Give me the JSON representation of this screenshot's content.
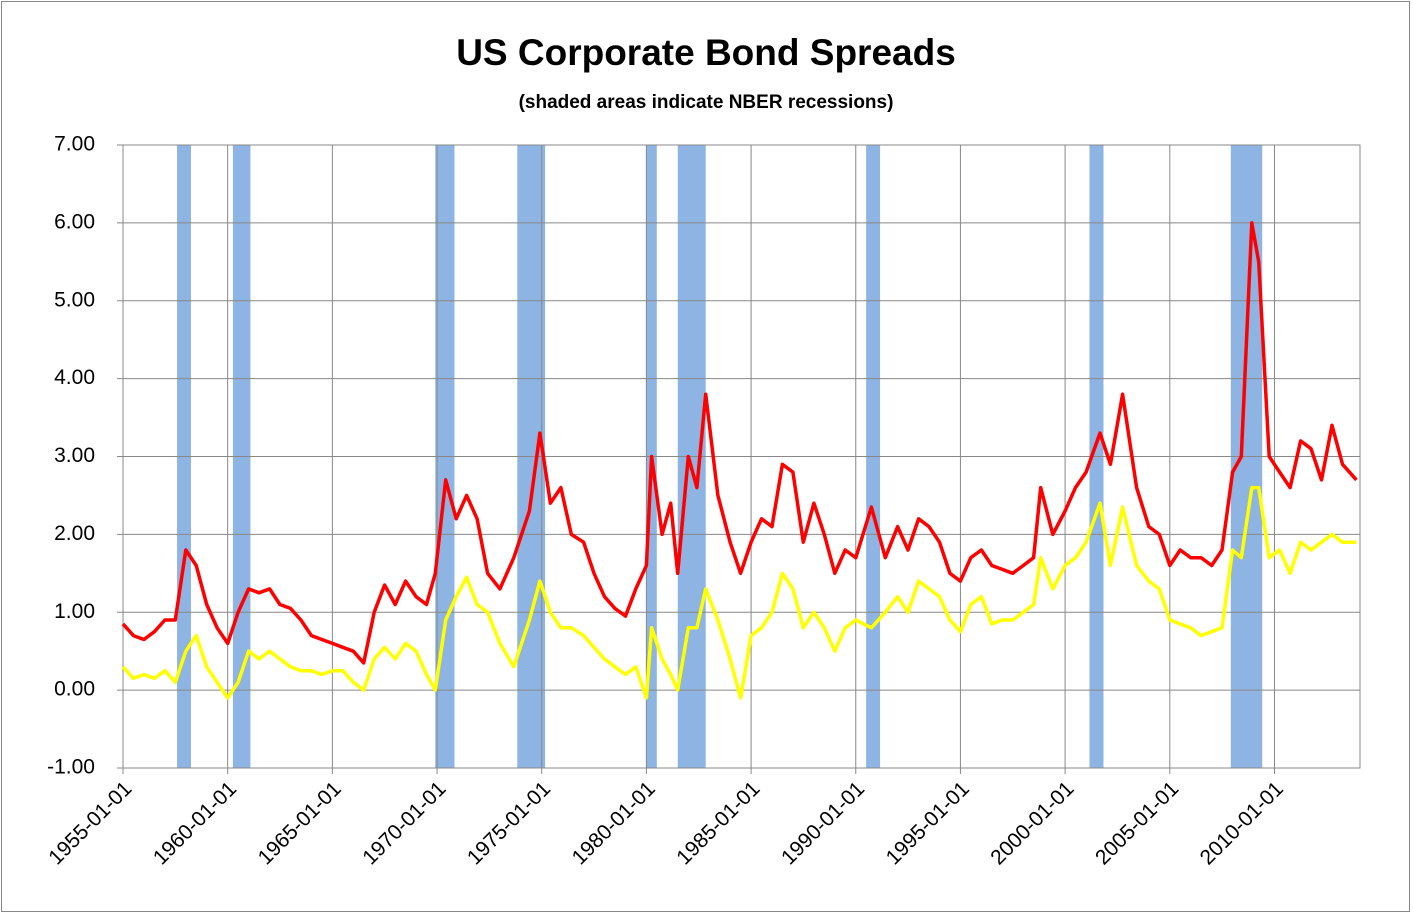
{
  "chart_data": {
    "type": "line",
    "title": "US Corporate Bond Spreads",
    "subtitle": "(shaded areas indicate NBER recessions)",
    "x": [
      "1955-01-01",
      "1955-07-01",
      "1956-01-01",
      "1956-07-01",
      "1957-01-01",
      "1957-07-01",
      "1958-01-01",
      "1958-07-01",
      "1959-01-01",
      "1959-07-01",
      "1960-01-01",
      "1960-07-01",
      "1961-01-01",
      "1961-07-01",
      "1962-01-01",
      "1962-07-01",
      "1963-01-01",
      "1963-07-01",
      "1964-01-01",
      "1964-07-01",
      "1965-01-01",
      "1965-07-01",
      "1966-01-01",
      "1966-07-01",
      "1967-01-01",
      "1967-07-01",
      "1968-01-01",
      "1968-07-01",
      "1969-01-01",
      "1969-07-01",
      "1969-12-01",
      "1970-06-01",
      "1970-12-01",
      "1971-06-01",
      "1971-12-01",
      "1972-06-01",
      "1973-01-01",
      "1973-09-01",
      "1974-06-01",
      "1974-12-01",
      "1975-06-01",
      "1975-12-01",
      "1976-06-01",
      "1977-01-01",
      "1977-07-01",
      "1978-01-01",
      "1978-07-01",
      "1979-01-01",
      "1979-07-01",
      "1980-01-01",
      "1980-04-01",
      "1980-10-01",
      "1981-03-01",
      "1981-07-01",
      "1982-01-01",
      "1982-06-01",
      "1982-11-01",
      "1983-06-01",
      "1984-01-01",
      "1984-07-01",
      "1985-01-01",
      "1985-07-01",
      "1986-01-01",
      "1986-07-01",
      "1987-01-01",
      "1987-07-01",
      "1988-01-01",
      "1988-07-01",
      "1989-01-01",
      "1989-07-01",
      "1990-01-01",
      "1990-10-01",
      "1991-06-01",
      "1992-01-01",
      "1992-07-01",
      "1993-01-01",
      "1993-07-01",
      "1994-01-01",
      "1994-07-01",
      "1995-01-01",
      "1995-07-01",
      "1996-01-01",
      "1996-07-01",
      "1997-01-01",
      "1997-07-01",
      "1998-01-01",
      "1998-07-01",
      "1998-11-01",
      "1999-06-01",
      "2000-01-01",
      "2000-07-01",
      "2001-01-01",
      "2001-09-01",
      "2002-03-01",
      "2002-10-01",
      "2003-06-01",
      "2004-01-01",
      "2004-07-01",
      "2005-01-01",
      "2005-07-01",
      "2006-01-01",
      "2006-07-01",
      "2007-01-01",
      "2007-07-01",
      "2008-01-01",
      "2008-06-01",
      "2008-12-01",
      "2009-04-01",
      "2009-10-01",
      "2010-04-01",
      "2010-10-01",
      "2011-04-01",
      "2011-10-01",
      "2012-04-01",
      "2012-10-01",
      "2013-04-01",
      "2013-12-01"
    ],
    "series": [
      {
        "color": "#ff0000",
        "values": [
          0.85,
          0.7,
          0.65,
          0.75,
          0.9,
          0.9,
          1.8,
          1.6,
          1.1,
          0.8,
          0.6,
          1.0,
          1.3,
          1.25,
          1.3,
          1.1,
          1.05,
          0.9,
          0.7,
          0.65,
          0.6,
          0.55,
          0.5,
          0.35,
          1.0,
          1.35,
          1.1,
          1.4,
          1.2,
          1.1,
          1.5,
          2.7,
          2.2,
          2.5,
          2.2,
          1.5,
          1.3,
          1.7,
          2.3,
          3.3,
          2.4,
          2.6,
          2.0,
          1.9,
          1.5,
          1.2,
          1.05,
          0.95,
          1.3,
          1.6,
          3.0,
          2.0,
          2.4,
          1.5,
          3.0,
          2.6,
          3.8,
          2.5,
          1.9,
          1.5,
          1.9,
          2.2,
          2.1,
          2.9,
          2.8,
          1.9,
          2.4,
          2.0,
          1.5,
          1.8,
          1.7,
          2.35,
          1.7,
          2.1,
          1.8,
          2.2,
          2.1,
          1.9,
          1.5,
          1.4,
          1.7,
          1.8,
          1.6,
          1.55,
          1.5,
          1.6,
          1.7,
          2.6,
          2.0,
          2.3,
          2.6,
          2.8,
          3.3,
          2.9,
          3.8,
          2.6,
          2.1,
          2.0,
          1.6,
          1.8,
          1.7,
          1.7,
          1.6,
          1.8,
          2.8,
          3.0,
          6.0,
          5.5,
          3.0,
          2.8,
          2.6,
          3.2,
          3.1,
          2.7,
          3.4,
          2.9,
          2.7
        ]
      },
      {
        "color": "#ffff00",
        "values": [
          0.3,
          0.15,
          0.2,
          0.15,
          0.25,
          0.1,
          0.5,
          0.7,
          0.3,
          0.1,
          -0.1,
          0.1,
          0.5,
          0.4,
          0.5,
          0.4,
          0.3,
          0.25,
          0.25,
          0.2,
          0.25,
          0.25,
          0.1,
          0.0,
          0.4,
          0.55,
          0.4,
          0.6,
          0.5,
          0.2,
          0.0,
          0.9,
          1.2,
          1.45,
          1.1,
          1.0,
          0.6,
          0.3,
          0.9,
          1.4,
          1.0,
          0.8,
          0.8,
          0.7,
          0.55,
          0.4,
          0.3,
          0.2,
          0.3,
          -0.1,
          0.8,
          0.4,
          0.2,
          0.0,
          0.8,
          0.8,
          1.3,
          0.9,
          0.4,
          -0.1,
          0.7,
          0.8,
          1.0,
          1.5,
          1.3,
          0.8,
          1.0,
          0.8,
          0.5,
          0.8,
          0.9,
          0.8,
          1.0,
          1.2,
          1.0,
          1.4,
          1.3,
          1.2,
          0.9,
          0.75,
          1.1,
          1.2,
          0.85,
          0.9,
          0.9,
          1.0,
          1.1,
          1.7,
          1.3,
          1.6,
          1.7,
          1.9,
          2.4,
          1.6,
          2.35,
          1.6,
          1.4,
          1.3,
          0.9,
          0.85,
          0.8,
          0.7,
          0.75,
          0.8,
          1.8,
          1.7,
          2.6,
          2.6,
          1.7,
          1.8,
          1.5,
          1.9,
          1.8,
          1.9,
          2.0,
          1.9,
          1.9
        ]
      }
    ],
    "recessions": [
      [
        "1957-08-01",
        "1958-04-01"
      ],
      [
        "1960-04-01",
        "1961-02-01"
      ],
      [
        "1969-12-01",
        "1970-11-01"
      ],
      [
        "1973-11-01",
        "1975-03-01"
      ],
      [
        "1980-01-01",
        "1980-07-01"
      ],
      [
        "1981-07-01",
        "1982-11-01"
      ],
      [
        "1990-07-01",
        "1991-03-01"
      ],
      [
        "2001-03-01",
        "2001-11-01"
      ],
      [
        "2007-12-01",
        "2009-06-01"
      ]
    ],
    "recession_color": "#8db4e2",
    "xlim": [
      "1955-01-01",
      "2014-02-01"
    ],
    "xticks": [
      "1955-01-01",
      "1960-01-01",
      "1965-01-01",
      "1970-01-01",
      "1975-01-01",
      "1980-01-01",
      "1985-01-01",
      "1990-01-01",
      "1995-01-01",
      "2000-01-01",
      "2005-01-01",
      "2010-01-01"
    ],
    "ylim": [
      -1,
      7
    ],
    "yticks": [
      {
        "value": -1,
        "label": "-1.00"
      },
      {
        "value": 0,
        "label": "0.00"
      },
      {
        "value": 1,
        "label": "1.00"
      },
      {
        "value": 2,
        "label": "2.00"
      },
      {
        "value": 3,
        "label": "3.00"
      },
      {
        "value": 4,
        "label": "4.00"
      },
      {
        "value": 5,
        "label": "5.00"
      },
      {
        "value": 6,
        "label": "6.00"
      },
      {
        "value": 7,
        "label": "7.00"
      }
    ],
    "grid": true
  }
}
